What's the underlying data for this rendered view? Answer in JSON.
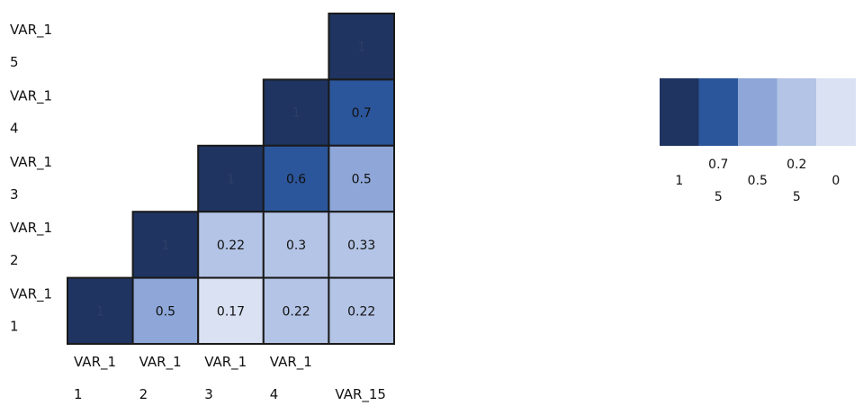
{
  "chart_data": {
    "type": "heatmap",
    "rows": [
      "VAR_15",
      "VAR_14",
      "VAR_13",
      "VAR_12",
      "VAR_11"
    ],
    "columns": [
      "VAR_11",
      "VAR_12",
      "VAR_13",
      "VAR_14",
      "VAR_15"
    ],
    "y_tick_labels": [
      [
        "VAR_1",
        "5"
      ],
      [
        "VAR_1",
        "4"
      ],
      [
        "VAR_1",
        "3"
      ],
      [
        "VAR_1",
        "2"
      ],
      [
        "VAR_1",
        "1"
      ]
    ],
    "x_tick_labels": [
      [
        "VAR_1",
        "1"
      ],
      [
        "VAR_1",
        "2"
      ],
      [
        "VAR_1",
        "3"
      ],
      [
        "VAR_1",
        "4"
      ],
      [
        "",
        "VAR_15"
      ]
    ],
    "values": [
      [
        null,
        null,
        null,
        null,
        1
      ],
      [
        null,
        null,
        null,
        1,
        0.7
      ],
      [
        null,
        null,
        1,
        0.6,
        0.5
      ],
      [
        null,
        1,
        0.22,
        0.3,
        0.33
      ],
      [
        1,
        0.5,
        0.17,
        0.22,
        0.22
      ]
    ],
    "labels": [
      [
        null,
        null,
        null,
        null,
        "1"
      ],
      [
        null,
        null,
        null,
        "1",
        "0.7"
      ],
      [
        null,
        null,
        "1",
        "0.6",
        "0.5"
      ],
      [
        null,
        "1",
        "0.22",
        "0.3",
        "0.33"
      ],
      [
        "1",
        "0.5",
        "0.17",
        "0.22",
        "0.22"
      ]
    ],
    "color_scale": {
      "colors": [
        "#1f3461",
        "#2c569b",
        "#8ea7d8",
        "#b3c4e6",
        "#d9e1f3"
      ],
      "tick_labels": [
        [
          "1"
        ],
        [
          "0.7",
          "5"
        ],
        [
          "0.5"
        ],
        [
          "0.2",
          "5"
        ],
        [
          "0"
        ]
      ],
      "position": "right"
    },
    "grid": false
  }
}
